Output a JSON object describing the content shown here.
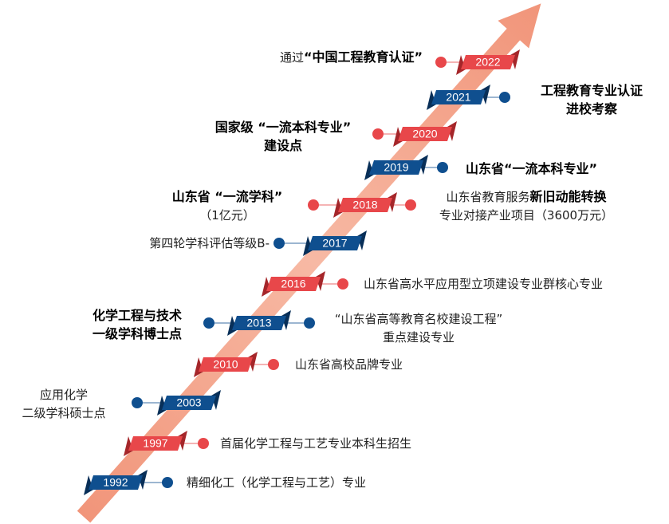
{
  "milestones": [
    {
      "year": "1992",
      "color": "#0f4f8f",
      "right": {
        "lines": [
          [
            {
              "text": "精细化工（化学工程与工艺）专业"
            }
          ]
        ]
      }
    },
    {
      "year": "1997",
      "color": "#e8474a",
      "right": {
        "lines": [
          [
            {
              "text": "首届化学工程与工艺专业本科生招生"
            }
          ]
        ]
      }
    },
    {
      "year": "2003",
      "color": "#0f4f8f",
      "left": {
        "lines": [
          [
            {
              "text": "应用化学"
            }
          ],
          [
            {
              "text": "二级学科硕士点"
            }
          ]
        ]
      }
    },
    {
      "year": "2010",
      "color": "#e8474a",
      "right": {
        "lines": [
          [
            {
              "text": "山东省高校品牌专业"
            }
          ]
        ]
      }
    },
    {
      "year": "2013",
      "color": "#0f4f8f",
      "left": {
        "lines": [
          [
            {
              "text": "化学工程与技术",
              "bold": true
            }
          ],
          [
            {
              "text": "一级学科博士点",
              "bold": true
            }
          ]
        ]
      },
      "right": {
        "lines": [
          [
            {
              "text": "“山东省高等教育名校建设工程”"
            }
          ],
          [
            {
              "text": "重点建设专业"
            }
          ]
        ]
      }
    },
    {
      "year": "2016",
      "color": "#e8474a",
      "right": {
        "lines": [
          [
            {
              "text": "山东省高水平应用型立项建设专业群核心专业"
            }
          ]
        ]
      }
    },
    {
      "year": "2017",
      "color": "#0f4f8f",
      "left": {
        "lines": [
          [
            {
              "text": "第四轮学科评估等级B-"
            }
          ]
        ]
      }
    },
    {
      "year": "2018",
      "color": "#e8474a",
      "left": {
        "lines": [
          [
            {
              "text": "山东省 “一流学科”",
              "bold": true
            }
          ],
          [
            {
              "text": "（1亿元）"
            }
          ]
        ]
      },
      "right": {
        "lines": [
          [
            {
              "text": "山东省教育服务"
            },
            {
              "text": "新旧动能转换",
              "bold": true
            }
          ],
          [
            {
              "text": "专业对接产业项目（3600万元）"
            }
          ]
        ]
      }
    },
    {
      "year": "2019",
      "color": "#0f4f8f",
      "right": {
        "lines": [
          [
            {
              "text": "山东省“一流本科专业”",
              "bold": true
            }
          ]
        ]
      }
    },
    {
      "year": "2020",
      "color": "#e8474a",
      "left": {
        "lines": [
          [
            {
              "text": "国家级 “一流本科专业”",
              "bold": true
            }
          ],
          [
            {
              "text": "建设点",
              "bold": true
            }
          ]
        ]
      }
    },
    {
      "year": "2021",
      "color": "#0f4f8f",
      "right": {
        "lines": [
          [
            {
              "text": "工程教育专业认证",
              "bold": true
            }
          ],
          [
            {
              "text": "进校考察",
              "bold": true
            }
          ]
        ]
      }
    },
    {
      "year": "2022",
      "color": "#e8474a",
      "left": {
        "lines": [
          [
            {
              "text": "通过"
            },
            {
              "text": "“中国工程教育认证”",
              "bold": true
            }
          ]
        ]
      }
    }
  ]
}
